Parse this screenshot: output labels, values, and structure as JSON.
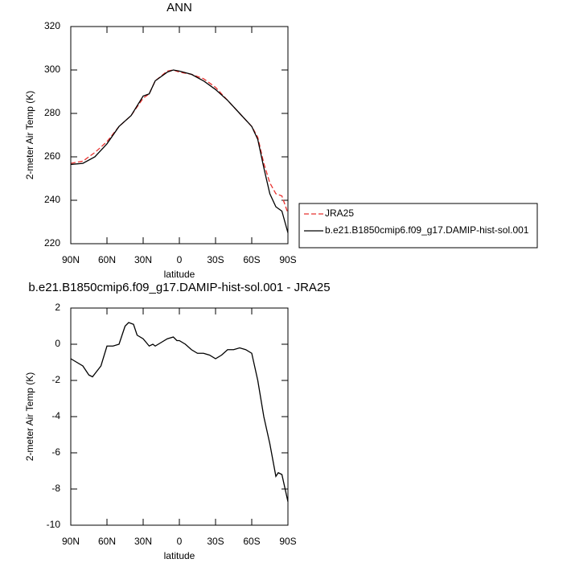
{
  "chart_data": [
    {
      "type": "line",
      "title": "ANN",
      "xlabel": "latitude",
      "ylabel": "2-meter Air Temp (K)",
      "x": [
        90,
        80,
        70,
        60,
        50,
        40,
        30,
        25,
        20,
        10,
        5,
        0,
        -10,
        -20,
        -30,
        -40,
        -50,
        -60,
        -65,
        -70,
        -75,
        -80,
        -85,
        -90
      ],
      "series": [
        {
          "name": "JRA25",
          "color": "#e8312f",
          "dash": true,
          "values": [
            257,
            258,
            262,
            267,
            274,
            279,
            287,
            289,
            295,
            299.5,
            300,
            299,
            298,
            296,
            292,
            286,
            280,
            274,
            269,
            257,
            248,
            243,
            242,
            234
          ]
        },
        {
          "name": "b.e21.B1850cmip6.f09_g17.DAMIP-hist-sol.001",
          "color": "#000000",
          "dash": false,
          "values": [
            256.5,
            257,
            260,
            266,
            274,
            279,
            288,
            289,
            295,
            299,
            300,
            299.5,
            298,
            295,
            291,
            286,
            280,
            274,
            268,
            255,
            243,
            237,
            235,
            225
          ]
        }
      ],
      "xlim": [
        90,
        -90
      ],
      "xticks": [
        {
          "value": 90,
          "label": "90N"
        },
        {
          "value": 60,
          "label": "60N"
        },
        {
          "value": 30,
          "label": "30N"
        },
        0,
        {
          "value": -30,
          "label": "30S"
        },
        {
          "value": -60,
          "label": "60S"
        },
        {
          "value": -90,
          "label": "90S"
        }
      ],
      "ylim": [
        220,
        320
      ],
      "yticks": [
        220,
        240,
        260,
        280,
        300,
        320
      ],
      "legend": "outside-right"
    },
    {
      "type": "line",
      "title": "b.e21.B1850cmip6.f09_g17.DAMIP-hist-sol.001 - JRA25",
      "xlabel": "latitude",
      "ylabel": "2-meter Air Temp (K)",
      "x": [
        90,
        85,
        80,
        75,
        72,
        65,
        60,
        55,
        50,
        45,
        42,
        38,
        35,
        30,
        25,
        22,
        20,
        15,
        10,
        5,
        2,
        0,
        -5,
        -10,
        -15,
        -20,
        -25,
        -30,
        -35,
        -40,
        -45,
        -50,
        -55,
        -60,
        -65,
        -70,
        -75,
        -80,
        -82,
        -85,
        -90
      ],
      "values": [
        -0.8,
        -1,
        -1.2,
        -1.7,
        -1.8,
        -1.2,
        -0.1,
        -0.1,
        0.0,
        1.0,
        1.2,
        1.1,
        0.5,
        0.3,
        -0.1,
        0.0,
        -0.1,
        0.1,
        0.3,
        0.4,
        0.2,
        0.2,
        0.0,
        -0.3,
        -0.5,
        -0.5,
        -0.6,
        -0.8,
        -0.6,
        -0.3,
        -0.3,
        -0.2,
        -0.3,
        -0.5,
        -2,
        -4,
        -5.5,
        -7.3,
        -7.1,
        -7.2,
        -8.7
      ],
      "color": "#000000",
      "xlim": [
        90,
        -90
      ],
      "xticks": [
        {
          "value": 90,
          "label": "90N"
        },
        {
          "value": 60,
          "label": "60N"
        },
        {
          "value": 30,
          "label": "30N"
        },
        0,
        {
          "value": -30,
          "label": "30S"
        },
        {
          "value": -60,
          "label": "60S"
        },
        {
          "value": -90,
          "label": "90S"
        }
      ],
      "ylim": [
        -10,
        2
      ],
      "yticks": [
        -10,
        -8,
        -6,
        -4,
        -2,
        0,
        2
      ]
    }
  ]
}
